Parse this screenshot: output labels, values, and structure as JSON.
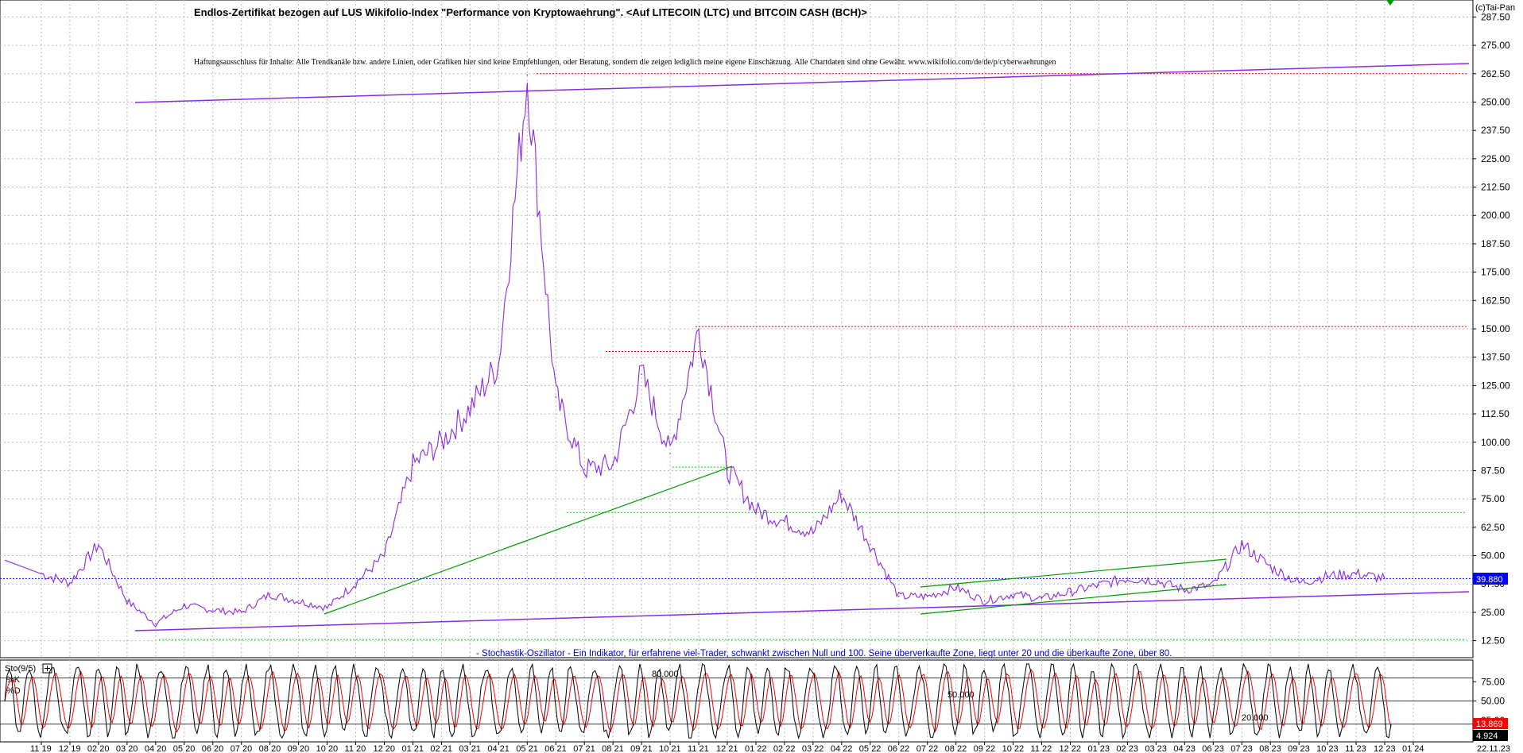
{
  "title": "Endlos-Zertifikat bezogen auf LUS Wikifolio-Index \"Performance von Kryptowaehrung\". <Auf LITECOIN (LTC) und BITCOIN CASH (BCH)>",
  "disclaimer": "Haftungsausschluss für Inhalte: Alle Trendkanäle bzw. andere Linien, oder Grafiken hier sind keine Empfehlungen, oder Beratung, sondern die zeigen lediglich meine eigene Einschätzung. Alle Chartdaten sind ohne Gewähr. www.wikifolio.com/de/de/p/cyberwaehrungen",
  "copyright": "(c)Tai-Pan",
  "stochastic_note": "- Stochastik-Oszillator - Ein Indikator, für erfahrene viel-Trader, schwankt zwischen Null und 100. Seine überverkaufte Zone, liegt unter 20 und die überkaufte Zone, über 80.",
  "colors": {
    "price": "#8a2be2",
    "trend_green": "#009900",
    "resistance_red": "#ff0000",
    "support_green": "#00dd00",
    "current_blue": "#0000ff",
    "stoch_k": "#000000",
    "stoch_d": "#ff0000"
  },
  "chart_data": [
    {
      "type": "line",
      "title": "Endlos-Zertifikat bezogen auf LUS Wikifolio-Index \"Performance von Kryptowaehrung\". <Auf LITECOIN (LTC) und BITCOIN CASH (BCH)>",
      "y_ticks": [
        "287.50",
        "275.00",
        "262.50",
        "250.00",
        "237.50",
        "225.00",
        "212.50",
        "200.00",
        "187.50",
        "175.00",
        "162.50",
        "150.00",
        "137.50",
        "125.00",
        "112.50",
        "100.00",
        "87.50",
        "75.00",
        "62.50",
        "50.00",
        "37.50",
        "25.00",
        "12.50"
      ],
      "ylim": [
        5,
        295
      ],
      "x_ticks": [
        "11 19",
        "12 19",
        "02 20",
        "03 20",
        "04 20",
        "05 20",
        "06 20",
        "07 20",
        "08 20",
        "09 20",
        "10 20",
        "11 20",
        "12 20",
        "01 21",
        "02 21",
        "03 21",
        "04 21",
        "05 21",
        "06 21",
        "07 21",
        "08 21",
        "09 21",
        "10 21",
        "11 21",
        "12 21",
        "01 22",
        "02 22",
        "03 22",
        "04 22",
        "05 22",
        "06 22",
        "07 22",
        "08 22",
        "09 22",
        "10 22",
        "11 22",
        "12 22",
        "01 23",
        "02 23",
        "03 23",
        "04 23",
        "06 23",
        "07 23",
        "08 23",
        "09 23",
        "10 23",
        "11 23",
        "12 23",
        "01 24"
      ],
      "last_date_label": "22.11.23",
      "current_value": "39.880",
      "grid": true,
      "series": [
        {
          "values": [
            [
              "11 19",
              42
            ],
            [
              "12 19",
              38
            ],
            [
              "02 20",
              55
            ],
            [
              "03 20",
              30
            ],
            [
              "04 20",
              20
            ],
            [
              "05 20",
              28
            ],
            [
              "06 20",
              26
            ],
            [
              "07 20",
              25
            ],
            [
              "08 20",
              33
            ],
            [
              "09 20",
              30
            ],
            [
              "10 20",
              27
            ],
            [
              "11 20",
              38
            ],
            [
              "12 20",
              50
            ],
            [
              "01 21",
              90
            ],
            [
              "02 21",
              100
            ],
            [
              "03 21",
              115
            ],
            [
              "04 21",
              135
            ],
            [
              "05 21",
              262
            ],
            [
              "06 21",
              120
            ],
            [
              "07 21",
              88
            ],
            [
              "08 21",
              90
            ],
            [
              "09 21",
              130
            ],
            [
              "10 21",
              95
            ],
            [
              "11 21",
              150
            ],
            [
              "12 21",
              88
            ],
            [
              "01 22",
              70
            ],
            [
              "02 22",
              65
            ],
            [
              "03 22",
              60
            ],
            [
              "04 22",
              77
            ],
            [
              "05 22",
              55
            ],
            [
              "06 22",
              32
            ],
            [
              "07 22",
              32
            ],
            [
              "08 22",
              36
            ],
            [
              "09 22",
              30
            ],
            [
              "10 22",
              33
            ],
            [
              "11 22",
              31
            ],
            [
              "12 22",
              34
            ],
            [
              "01 23",
              37
            ],
            [
              "02 23",
              40
            ],
            [
              "03 23",
              39
            ],
            [
              "04 23",
              35
            ],
            [
              "06 23",
              37
            ],
            [
              "07 23",
              55
            ],
            [
              "08 23",
              45
            ],
            [
              "09 23",
              38
            ],
            [
              "10 23",
              41
            ],
            [
              "11 23",
              42
            ],
            [
              "22.11.23",
              39.88
            ]
          ]
        }
      ],
      "horizontal_levels": [
        {
          "value": 262.5,
          "style": "red-dotted"
        },
        {
          "value": 151,
          "style": "red-dotted"
        },
        {
          "value": 140,
          "style": "red-dotted"
        },
        {
          "value": 89,
          "style": "green-dotted"
        },
        {
          "value": 69,
          "style": "green-dotted"
        },
        {
          "value": 39.88,
          "style": "blue-dotted"
        },
        {
          "value": 13,
          "style": "green-dotted"
        }
      ]
    },
    {
      "type": "line",
      "title": "Sto(9/5)",
      "series_labels": [
        "%K",
        "%D"
      ],
      "y_ticks": [
        "75.00",
        "50.00",
        "25.00"
      ],
      "ylim": [
        0,
        100
      ],
      "level_labels": [
        "80.000",
        "50.000",
        "20.000"
      ],
      "current_values": {
        "k": "13.869",
        "d": "4.924"
      },
      "oscillations": 64
    }
  ]
}
